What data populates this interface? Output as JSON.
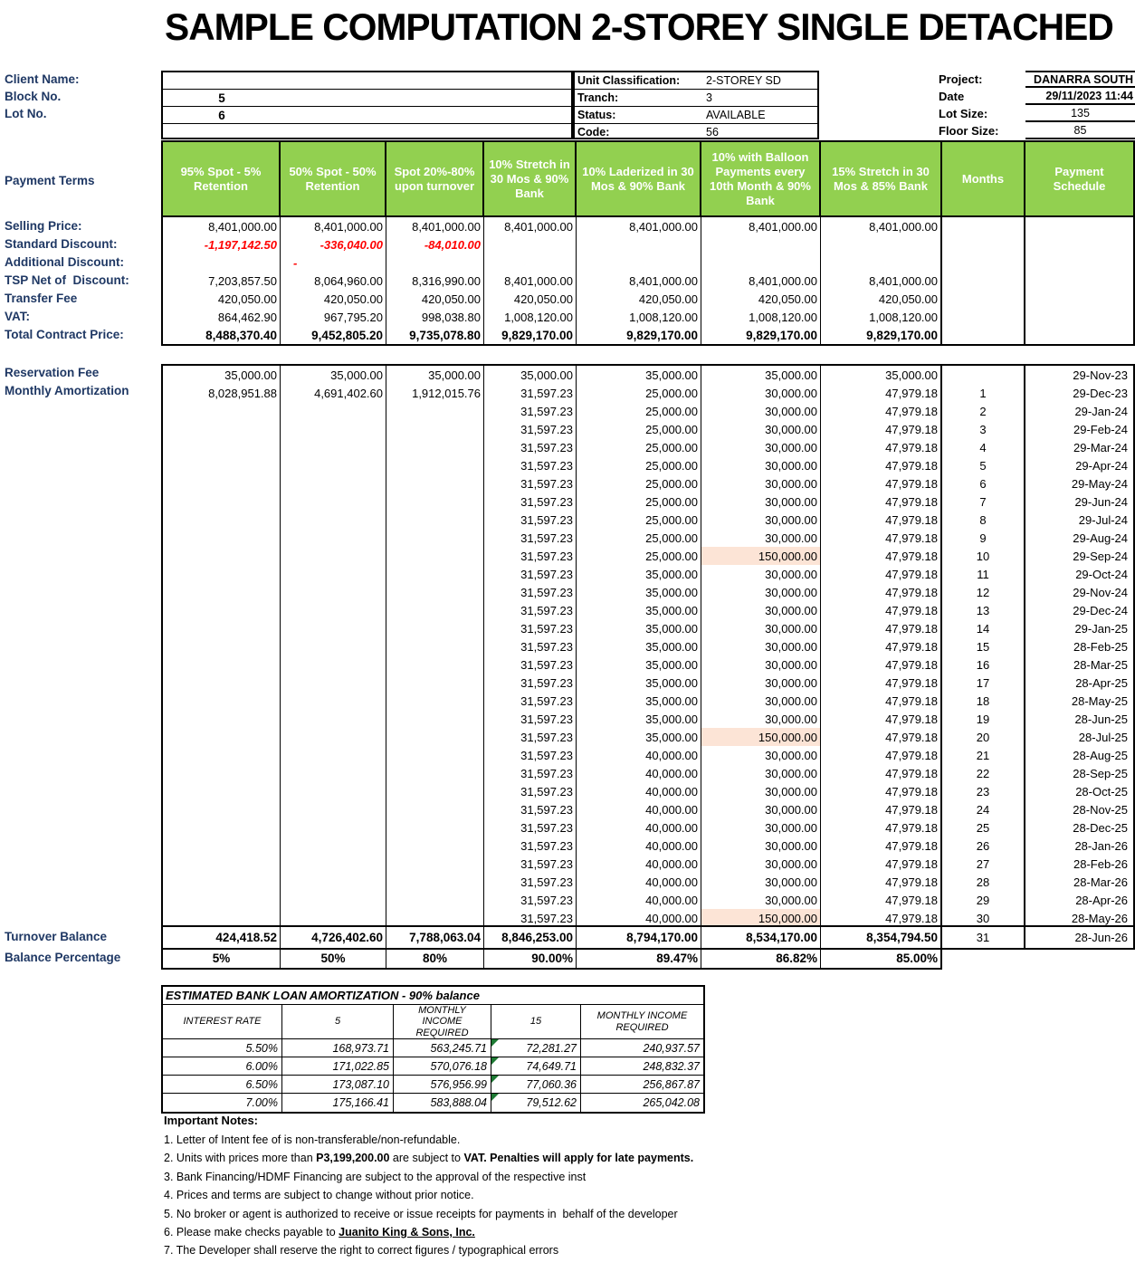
{
  "title": "SAMPLE COMPUTATION 2-STOREY SINGLE DETACHED",
  "colors": {
    "header_green": "#92D050",
    "label_navy": "#1F3864",
    "red": "#FF0000",
    "highlight": "#FCE4D6",
    "triangle_green": "#1E7A34"
  },
  "info": {
    "client_name_label": "Client Name:",
    "client_name_value": "",
    "block_no_label": "Block No.",
    "block_no_value": "5",
    "lot_no_label": "Lot No.",
    "lot_no_value": "6",
    "unit_classification_label": "Unit Classification:",
    "unit_classification_value": "2-STOREY SD",
    "tranch_label": "Tranch:",
    "tranch_value": "3",
    "status_label": "Status:",
    "status_value": "AVAILABLE",
    "code_label": "Code:",
    "code_value": "56",
    "project_label": "Project:",
    "project_value": "DANARRA SOUTH",
    "date_label": "Date",
    "date_value": "29/11/2023 11:44",
    "lot_size_label": "Lot Size:",
    "lot_size_value": "135",
    "floor_size_label": "Floor Size:",
    "floor_size_value": "85"
  },
  "payment_terms_label": "Payment Terms",
  "columns": [
    "95% Spot - 5% Retention",
    "50% Spot - 50% Retention",
    "Spot 20%-80% upon turnover",
    "10% Stretch in 30 Mos & 90% Bank",
    "10% Laderized in 30 Mos & 90% Bank",
    "10% with Balloon Payments every 10th Month & 90% Bank",
    "15% Stretch in 30 Mos & 85% Bank",
    "Months",
    "Payment Schedule"
  ],
  "price_rows": [
    {
      "label": "Selling Price:",
      "values": [
        "8,401,000.00",
        "8,401,000.00",
        "8,401,000.00",
        "8,401,000.00",
        "8,401,000.00",
        "8,401,000.00",
        "8,401,000.00"
      ],
      "red": false,
      "bold": false
    },
    {
      "label": "Standard Discount:",
      "values": [
        "-1,197,142.50",
        "-336,040.00",
        "-84,010.00",
        "",
        "",
        "",
        ""
      ],
      "red": true,
      "bold": false
    },
    {
      "label": "Additional Discount:",
      "values": [
        "",
        "-",
        "",
        "",
        "",
        "",
        ""
      ],
      "red": true,
      "bold": false
    },
    {
      "label": "TSP Net of  Discount:",
      "values": [
        "7,203,857.50",
        "8,064,960.00",
        "8,316,990.00",
        "8,401,000.00",
        "8,401,000.00",
        "8,401,000.00",
        "8,401,000.00"
      ],
      "red": false,
      "bold": false
    },
    {
      "label": "Transfer Fee",
      "values": [
        "420,050.00",
        "420,050.00",
        "420,050.00",
        "420,050.00",
        "420,050.00",
        "420,050.00",
        "420,050.00"
      ],
      "red": false,
      "bold": false
    },
    {
      "label": "VAT:",
      "values": [
        "864,462.90",
        "967,795.20",
        "998,038.80",
        "1,008,120.00",
        "1,008,120.00",
        "1,008,120.00",
        "1,008,120.00"
      ],
      "red": false,
      "bold": false
    },
    {
      "label": "Total Contract Price:",
      "values": [
        "8,488,370.40",
        "9,452,805.20",
        "9,735,078.80",
        "9,829,170.00",
        "9,829,170.00",
        "9,829,170.00",
        "9,829,170.00"
      ],
      "red": false,
      "bold": true
    }
  ],
  "schedule": {
    "reservation_label": "Reservation Fee",
    "amortization_label": "Monthly Amortization",
    "rows": [
      {
        "c1": "35,000.00",
        "c2": "35,000.00",
        "c3": "35,000.00",
        "c4": "35,000.00",
        "c5": "35,000.00",
        "c6": "35,000.00",
        "c7": "35,000.00",
        "m": "",
        "d": "29-Nov-23",
        "hl": false
      },
      {
        "c1": "8,028,951.88",
        "c2": "4,691,402.60",
        "c3": "1,912,015.76",
        "c4": "31,597.23",
        "c5": "25,000.00",
        "c6": "30,000.00",
        "c7": "47,979.18",
        "m": "1",
        "d": "29-Dec-23",
        "hl": false
      },
      {
        "c1": "",
        "c2": "",
        "c3": "",
        "c4": "31,597.23",
        "c5": "25,000.00",
        "c6": "30,000.00",
        "c7": "47,979.18",
        "m": "2",
        "d": "29-Jan-24",
        "hl": false
      },
      {
        "c1": "",
        "c2": "",
        "c3": "",
        "c4": "31,597.23",
        "c5": "25,000.00",
        "c6": "30,000.00",
        "c7": "47,979.18",
        "m": "3",
        "d": "29-Feb-24",
        "hl": false
      },
      {
        "c1": "",
        "c2": "",
        "c3": "",
        "c4": "31,597.23",
        "c5": "25,000.00",
        "c6": "30,000.00",
        "c7": "47,979.18",
        "m": "4",
        "d": "29-Mar-24",
        "hl": false
      },
      {
        "c1": "",
        "c2": "",
        "c3": "",
        "c4": "31,597.23",
        "c5": "25,000.00",
        "c6": "30,000.00",
        "c7": "47,979.18",
        "m": "5",
        "d": "29-Apr-24",
        "hl": false
      },
      {
        "c1": "",
        "c2": "",
        "c3": "",
        "c4": "31,597.23",
        "c5": "25,000.00",
        "c6": "30,000.00",
        "c7": "47,979.18",
        "m": "6",
        "d": "29-May-24",
        "hl": false
      },
      {
        "c1": "",
        "c2": "",
        "c3": "",
        "c4": "31,597.23",
        "c5": "25,000.00",
        "c6": "30,000.00",
        "c7": "47,979.18",
        "m": "7",
        "d": "29-Jun-24",
        "hl": false
      },
      {
        "c1": "",
        "c2": "",
        "c3": "",
        "c4": "31,597.23",
        "c5": "25,000.00",
        "c6": "30,000.00",
        "c7": "47,979.18",
        "m": "8",
        "d": "29-Jul-24",
        "hl": false
      },
      {
        "c1": "",
        "c2": "",
        "c3": "",
        "c4": "31,597.23",
        "c5": "25,000.00",
        "c6": "30,000.00",
        "c7": "47,979.18",
        "m": "9",
        "d": "29-Aug-24",
        "hl": false
      },
      {
        "c1": "",
        "c2": "",
        "c3": "",
        "c4": "31,597.23",
        "c5": "25,000.00",
        "c6": "150,000.00",
        "c7": "47,979.18",
        "m": "10",
        "d": "29-Sep-24",
        "hl": true
      },
      {
        "c1": "",
        "c2": "",
        "c3": "",
        "c4": "31,597.23",
        "c5": "35,000.00",
        "c6": "30,000.00",
        "c7": "47,979.18",
        "m": "11",
        "d": "29-Oct-24",
        "hl": false
      },
      {
        "c1": "",
        "c2": "",
        "c3": "",
        "c4": "31,597.23",
        "c5": "35,000.00",
        "c6": "30,000.00",
        "c7": "47,979.18",
        "m": "12",
        "d": "29-Nov-24",
        "hl": false
      },
      {
        "c1": "",
        "c2": "",
        "c3": "",
        "c4": "31,597.23",
        "c5": "35,000.00",
        "c6": "30,000.00",
        "c7": "47,979.18",
        "m": "13",
        "d": "29-Dec-24",
        "hl": false
      },
      {
        "c1": "",
        "c2": "",
        "c3": "",
        "c4": "31,597.23",
        "c5": "35,000.00",
        "c6": "30,000.00",
        "c7": "47,979.18",
        "m": "14",
        "d": "29-Jan-25",
        "hl": false
      },
      {
        "c1": "",
        "c2": "",
        "c3": "",
        "c4": "31,597.23",
        "c5": "35,000.00",
        "c6": "30,000.00",
        "c7": "47,979.18",
        "m": "15",
        "d": "28-Feb-25",
        "hl": false
      },
      {
        "c1": "",
        "c2": "",
        "c3": "",
        "c4": "31,597.23",
        "c5": "35,000.00",
        "c6": "30,000.00",
        "c7": "47,979.18",
        "m": "16",
        "d": "28-Mar-25",
        "hl": false
      },
      {
        "c1": "",
        "c2": "",
        "c3": "",
        "c4": "31,597.23",
        "c5": "35,000.00",
        "c6": "30,000.00",
        "c7": "47,979.18",
        "m": "17",
        "d": "28-Apr-25",
        "hl": false
      },
      {
        "c1": "",
        "c2": "",
        "c3": "",
        "c4": "31,597.23",
        "c5": "35,000.00",
        "c6": "30,000.00",
        "c7": "47,979.18",
        "m": "18",
        "d": "28-May-25",
        "hl": false
      },
      {
        "c1": "",
        "c2": "",
        "c3": "",
        "c4": "31,597.23",
        "c5": "35,000.00",
        "c6": "30,000.00",
        "c7": "47,979.18",
        "m": "19",
        "d": "28-Jun-25",
        "hl": false
      },
      {
        "c1": "",
        "c2": "",
        "c3": "",
        "c4": "31,597.23",
        "c5": "35,000.00",
        "c6": "150,000.00",
        "c7": "47,979.18",
        "m": "20",
        "d": "28-Jul-25",
        "hl": true
      },
      {
        "c1": "",
        "c2": "",
        "c3": "",
        "c4": "31,597.23",
        "c5": "40,000.00",
        "c6": "30,000.00",
        "c7": "47,979.18",
        "m": "21",
        "d": "28-Aug-25",
        "hl": false
      },
      {
        "c1": "",
        "c2": "",
        "c3": "",
        "c4": "31,597.23",
        "c5": "40,000.00",
        "c6": "30,000.00",
        "c7": "47,979.18",
        "m": "22",
        "d": "28-Sep-25",
        "hl": false
      },
      {
        "c1": "",
        "c2": "",
        "c3": "",
        "c4": "31,597.23",
        "c5": "40,000.00",
        "c6": "30,000.00",
        "c7": "47,979.18",
        "m": "23",
        "d": "28-Oct-25",
        "hl": false
      },
      {
        "c1": "",
        "c2": "",
        "c3": "",
        "c4": "31,597.23",
        "c5": "40,000.00",
        "c6": "30,000.00",
        "c7": "47,979.18",
        "m": "24",
        "d": "28-Nov-25",
        "hl": false
      },
      {
        "c1": "",
        "c2": "",
        "c3": "",
        "c4": "31,597.23",
        "c5": "40,000.00",
        "c6": "30,000.00",
        "c7": "47,979.18",
        "m": "25",
        "d": "28-Dec-25",
        "hl": false
      },
      {
        "c1": "",
        "c2": "",
        "c3": "",
        "c4": "31,597.23",
        "c5": "40,000.00",
        "c6": "30,000.00",
        "c7": "47,979.18",
        "m": "26",
        "d": "28-Jan-26",
        "hl": false
      },
      {
        "c1": "",
        "c2": "",
        "c3": "",
        "c4": "31,597.23",
        "c5": "40,000.00",
        "c6": "30,000.00",
        "c7": "47,979.18",
        "m": "27",
        "d": "28-Feb-26",
        "hl": false
      },
      {
        "c1": "",
        "c2": "",
        "c3": "",
        "c4": "31,597.23",
        "c5": "40,000.00",
        "c6": "30,000.00",
        "c7": "47,979.18",
        "m": "28",
        "d": "28-Mar-26",
        "hl": false
      },
      {
        "c1": "",
        "c2": "",
        "c3": "",
        "c4": "31,597.23",
        "c5": "40,000.00",
        "c6": "30,000.00",
        "c7": "47,979.18",
        "m": "29",
        "d": "28-Apr-26",
        "hl": false
      },
      {
        "c1": "",
        "c2": "",
        "c3": "",
        "c4": "31,597.23",
        "c5": "40,000.00",
        "c6": "150,000.00",
        "c7": "47,979.18",
        "m": "30",
        "d": "28-May-26",
        "hl": true
      }
    ]
  },
  "turnover": {
    "label": "Turnover Balance",
    "values": [
      "424,418.52",
      "4,726,402.60",
      "7,788,063.04",
      "8,846,253.00",
      "8,794,170.00",
      "8,534,170.00",
      "8,354,794.50"
    ],
    "month": "31",
    "date": "28-Jun-26"
  },
  "balance_pct": {
    "label": "Balance Percentage",
    "values": [
      "5%",
      "50%",
      "80%",
      "90.00%",
      "89.47%",
      "86.82%",
      "85.00%"
    ]
  },
  "bank_table": {
    "title": "ESTIMATED BANK LOAN AMORTIZATION - 90% balance",
    "headers": [
      "INTEREST RATE",
      "5",
      "MONTHLY INCOME REQUIRED",
      "15",
      "MONTHLY INCOME REQUIRED"
    ],
    "rows": [
      [
        "5.50%",
        "168,973.71",
        "563,245.71",
        "72,281.27",
        "240,937.57"
      ],
      [
        "6.00%",
        "171,022.85",
        "570,076.18",
        "74,649.71",
        "248,832.37"
      ],
      [
        "6.50%",
        "173,087.10",
        "576,956.99",
        "77,060.36",
        "256,867.87"
      ],
      [
        "7.00%",
        "175,166.41",
        "583,888.04",
        "79,512.62",
        "265,042.08"
      ]
    ]
  },
  "notes": {
    "heading": "Important Notes:",
    "items": [
      {
        "segments": [
          {
            "t": "1. Letter of Intent fee of is non-transferable/non-refundable.",
            "b": false,
            "u": false
          }
        ]
      },
      {
        "segments": [
          {
            "t": "2. Units with prices more than ",
            "b": false,
            "u": false
          },
          {
            "t": "P3,199,200.00",
            "b": true,
            "u": false
          },
          {
            "t": " are subject to ",
            "b": false,
            "u": false
          },
          {
            "t": "VAT. Penalties will apply for late payments.",
            "b": true,
            "u": false
          }
        ]
      },
      {
        "segments": [
          {
            "t": "3. Bank Financing/HDMF Financing are subject to the approval of the respective inst",
            "b": false,
            "u": false
          }
        ]
      },
      {
        "segments": [
          {
            "t": "4. Prices and terms are subject to change without prior notice.",
            "b": false,
            "u": false
          }
        ]
      },
      {
        "segments": [
          {
            "t": "5. No broker or agent is authorized to receive or issue receipts for payments in  behalf of the developer",
            "b": false,
            "u": false
          }
        ]
      },
      {
        "segments": [
          {
            "t": "6. Please make checks payable to ",
            "b": false,
            "u": false
          },
          {
            "t": "Juanito King & Sons, Inc.",
            "b": true,
            "u": true
          }
        ]
      },
      {
        "segments": [
          {
            "t": "7. The Developer shall reserve the right to correct figures / typographical errors",
            "b": false,
            "u": false
          }
        ]
      }
    ]
  }
}
